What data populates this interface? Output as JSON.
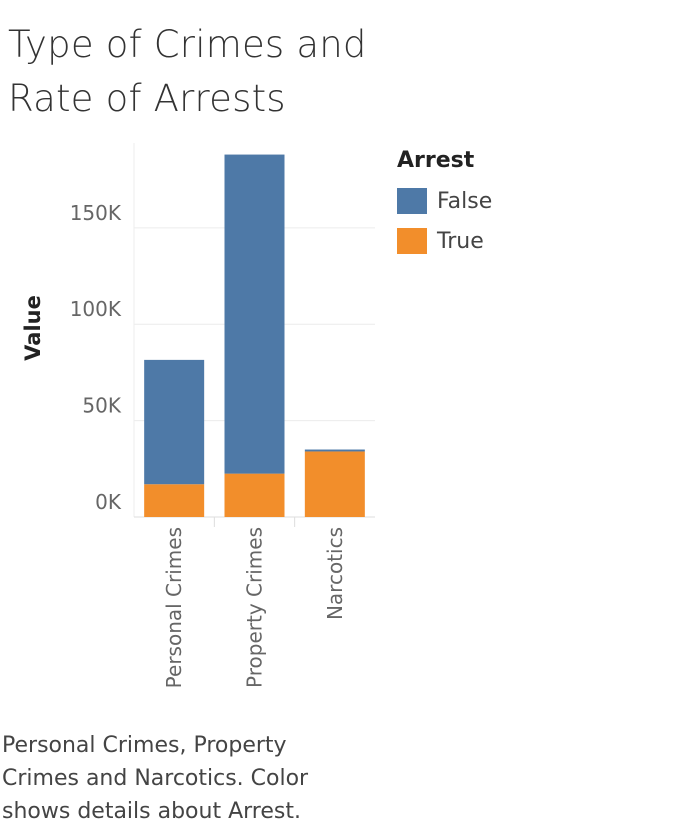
{
  "title_lines": [
    "Type of Crimes and",
    "Rate of Arrests"
  ],
  "caption": "Personal Crimes, Property Crimes and Narcotics.  Color shows details about Arrest.",
  "legend": {
    "title": "Arrest",
    "items": [
      {
        "label": "False",
        "color": "#4e79a7"
      },
      {
        "label": "True",
        "color": "#f28e2b"
      }
    ]
  },
  "chart_data": {
    "type": "bar",
    "stacked": true,
    "categories": [
      "Personal Crimes",
      "Property Crimes",
      "Narcotics"
    ],
    "series": [
      {
        "name": "True",
        "color": "#f28e2b",
        "values": [
          17000,
          22500,
          34000
        ]
      },
      {
        "name": "False",
        "color": "#4e79a7",
        "values": [
          64500,
          165500,
          1000
        ]
      }
    ],
    "ylabel": "Value",
    "ylim": [
      0,
      194000
    ],
    "yticks": [
      {
        "value": 0,
        "label": "0K"
      },
      {
        "value": 50000,
        "label": "50K"
      },
      {
        "value": 100000,
        "label": "100K"
      },
      {
        "value": 150000,
        "label": "150K"
      }
    ],
    "grid": true,
    "legend_position": "right"
  }
}
